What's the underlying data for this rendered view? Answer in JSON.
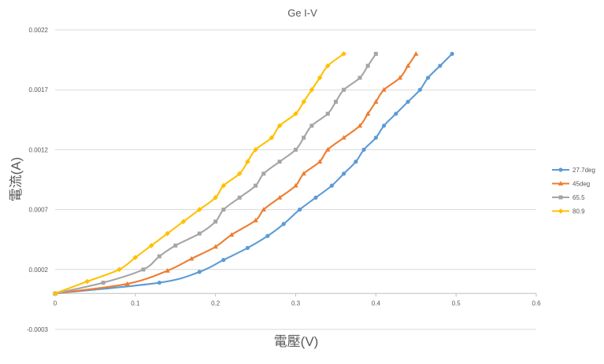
{
  "chart_data": {
    "type": "line",
    "title": "Ge I-V",
    "xlabel": "電壓(V)",
    "ylabel": "電流(A)",
    "xlim": [
      0,
      0.6
    ],
    "ylim": [
      -0.0003,
      0.0022
    ],
    "x_ticks": [
      "0",
      "0.1",
      "0.2",
      "0.3",
      "0.4",
      "0.5",
      "0.6"
    ],
    "y_ticks": [
      "-0.0003",
      "0.0002",
      "0.0007",
      "0.0012",
      "0.0017",
      "0.0022"
    ],
    "grid": true,
    "legend_position": "right",
    "series": [
      {
        "name": "27.7deg",
        "color": "#5b9bd5",
        "marker": "circle",
        "points": [
          [
            0,
            0
          ],
          [
            0.13,
            9e-05
          ],
          [
            0.18,
            0.00018
          ],
          [
            0.21,
            0.00028
          ],
          [
            0.24,
            0.00038
          ],
          [
            0.265,
            0.00048
          ],
          [
            0.285,
            0.00058
          ],
          [
            0.305,
            0.0007
          ],
          [
            0.325,
            0.0008
          ],
          [
            0.345,
            0.0009
          ],
          [
            0.36,
            0.001
          ],
          [
            0.375,
            0.0011
          ],
          [
            0.385,
            0.0012
          ],
          [
            0.4,
            0.0013
          ],
          [
            0.41,
            0.0014
          ],
          [
            0.425,
            0.0015
          ],
          [
            0.44,
            0.0016
          ],
          [
            0.455,
            0.0017
          ],
          [
            0.465,
            0.0018
          ],
          [
            0.48,
            0.0019
          ],
          [
            0.495,
            0.002
          ]
        ]
      },
      {
        "name": "45deg",
        "color": "#ed7d31",
        "marker": "triangle",
        "points": [
          [
            0,
            0
          ],
          [
            0.09,
            8e-05
          ],
          [
            0.14,
            0.00019
          ],
          [
            0.17,
            0.00029
          ],
          [
            0.2,
            0.00039
          ],
          [
            0.22,
            0.00049
          ],
          [
            0.25,
            0.00061
          ],
          [
            0.26,
            0.0007
          ],
          [
            0.28,
            0.0008
          ],
          [
            0.3,
            0.0009
          ],
          [
            0.31,
            0.001
          ],
          [
            0.33,
            0.0011
          ],
          [
            0.34,
            0.0012
          ],
          [
            0.36,
            0.0013
          ],
          [
            0.38,
            0.0014
          ],
          [
            0.39,
            0.0015
          ],
          [
            0.4,
            0.0016
          ],
          [
            0.41,
            0.0017
          ],
          [
            0.43,
            0.0018
          ],
          [
            0.44,
            0.0019
          ],
          [
            0.45,
            0.002
          ]
        ]
      },
      {
        "name": "65.5",
        "color": "#a5a5a5",
        "marker": "square",
        "points": [
          [
            0,
            0
          ],
          [
            0.06,
            9e-05
          ],
          [
            0.11,
            0.0002
          ],
          [
            0.13,
            0.00031
          ],
          [
            0.15,
            0.0004
          ],
          [
            0.18,
            0.0005
          ],
          [
            0.2,
            0.0006
          ],
          [
            0.21,
            0.0007
          ],
          [
            0.23,
            0.0008
          ],
          [
            0.25,
            0.0009
          ],
          [
            0.26,
            0.001
          ],
          [
            0.28,
            0.0011
          ],
          [
            0.3,
            0.0012
          ],
          [
            0.31,
            0.0013
          ],
          [
            0.32,
            0.0014
          ],
          [
            0.34,
            0.0015
          ],
          [
            0.35,
            0.0016
          ],
          [
            0.36,
            0.0017
          ],
          [
            0.38,
            0.0018
          ],
          [
            0.39,
            0.0019
          ],
          [
            0.4,
            0.002
          ]
        ]
      },
      {
        "name": "80.9",
        "color": "#ffc000",
        "marker": "diamond",
        "points": [
          [
            0,
            0
          ],
          [
            0.04,
            0.0001
          ],
          [
            0.08,
            0.0002
          ],
          [
            0.1,
            0.0003
          ],
          [
            0.12,
            0.0004
          ],
          [
            0.14,
            0.0005
          ],
          [
            0.16,
            0.0006
          ],
          [
            0.18,
            0.0007
          ],
          [
            0.2,
            0.0008
          ],
          [
            0.21,
            0.0009
          ],
          [
            0.23,
            0.001
          ],
          [
            0.24,
            0.0011
          ],
          [
            0.25,
            0.0012
          ],
          [
            0.27,
            0.0013
          ],
          [
            0.28,
            0.0014
          ],
          [
            0.3,
            0.0015
          ],
          [
            0.31,
            0.0016
          ],
          [
            0.32,
            0.0017
          ],
          [
            0.33,
            0.0018
          ],
          [
            0.34,
            0.0019
          ],
          [
            0.36,
            0.002
          ]
        ]
      }
    ]
  }
}
